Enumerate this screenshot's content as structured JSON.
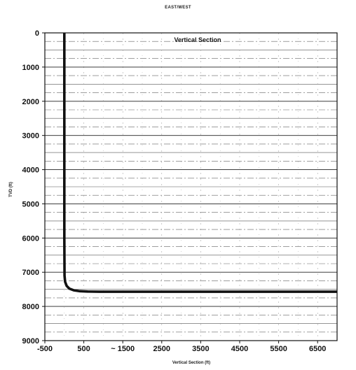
{
  "chart_data": {
    "type": "line",
    "title": "EAST/WEST",
    "xlabel": "Vertical Section (ft)",
    "ylabel": "TVD (ft)",
    "xlim": [
      -500,
      7000
    ],
    "ylim": [
      0,
      9000
    ],
    "y_inverted": true,
    "x_ticks": [
      "-500",
      "500",
      "~ 1500",
      "2500",
      "3500",
      "4500",
      "5500",
      "6500"
    ],
    "x_tick_values": [
      -500,
      500,
      1500,
      2500,
      3500,
      4500,
      5500,
      6500
    ],
    "y_ticks": [
      "0",
      "1000",
      "2000",
      "3000",
      "4000",
      "5000",
      "6000",
      "7000",
      "8000",
      "9000"
    ],
    "y_tick_values": [
      0,
      1000,
      2000,
      3000,
      4000,
      5000,
      6000,
      7000,
      8000,
      9000
    ],
    "grid": true,
    "legend_position": "top-center",
    "series": [
      {
        "name": "Vertical Section",
        "color": "#111111",
        "x": [
          0,
          0,
          0,
          5,
          20,
          60,
          130,
          250,
          400,
          600,
          900,
          1500,
          3000,
          5000,
          7000
        ],
        "y": [
          0,
          2000,
          6000,
          7100,
          7280,
          7400,
          7480,
          7530,
          7555,
          7565,
          7570,
          7570,
          7570,
          7570,
          7570
        ]
      }
    ]
  }
}
